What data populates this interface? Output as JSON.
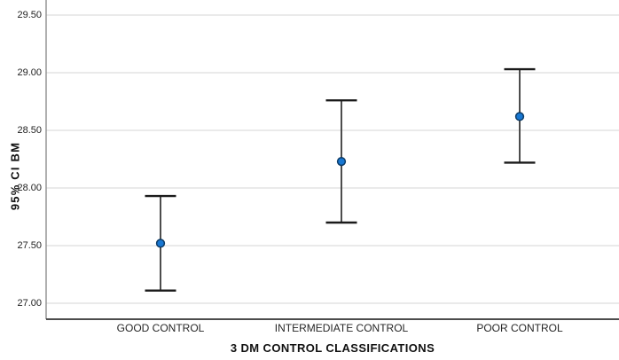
{
  "chart_data": {
    "type": "errorbar",
    "title": "",
    "xlabel": "3 DM CONTROL CLASSIFICATIONS",
    "ylabel": "95% CI BM",
    "categories": [
      "GOOD CONTROL",
      "INTERMEDIATE CONTROL",
      "POOR CONTROL"
    ],
    "series": [
      {
        "name": "95% CI BM",
        "means": [
          27.52,
          28.23,
          28.62
        ],
        "ci_low": [
          27.11,
          27.7,
          28.22
        ],
        "ci_high": [
          27.93,
          28.76,
          29.03
        ]
      }
    ],
    "y_ticks": [
      {
        "label": "29.50",
        "value": 29.5
      },
      {
        "label": "29.00",
        "value": 29.0
      },
      {
        "label": "28.50",
        "value": 28.5
      },
      {
        "label": "28.00",
        "value": 28.0
      },
      {
        "label": "27.50",
        "value": 27.5
      },
      {
        "label": "27.00",
        "value": 27.0
      }
    ],
    "ylim": [
      26.86,
      29.63
    ],
    "grid": "horizontal",
    "legend": "none",
    "colors": {
      "marker_fill": "#1877d2",
      "marker_stroke": "#0d3b66",
      "whisker": "#4d4d4d",
      "cap": "#1a1a1a",
      "gridline": "#e3e3e3",
      "y_axis_line": "#8f8f8f",
      "x_axis_line": "#333333",
      "background": "#ffffff"
    }
  }
}
